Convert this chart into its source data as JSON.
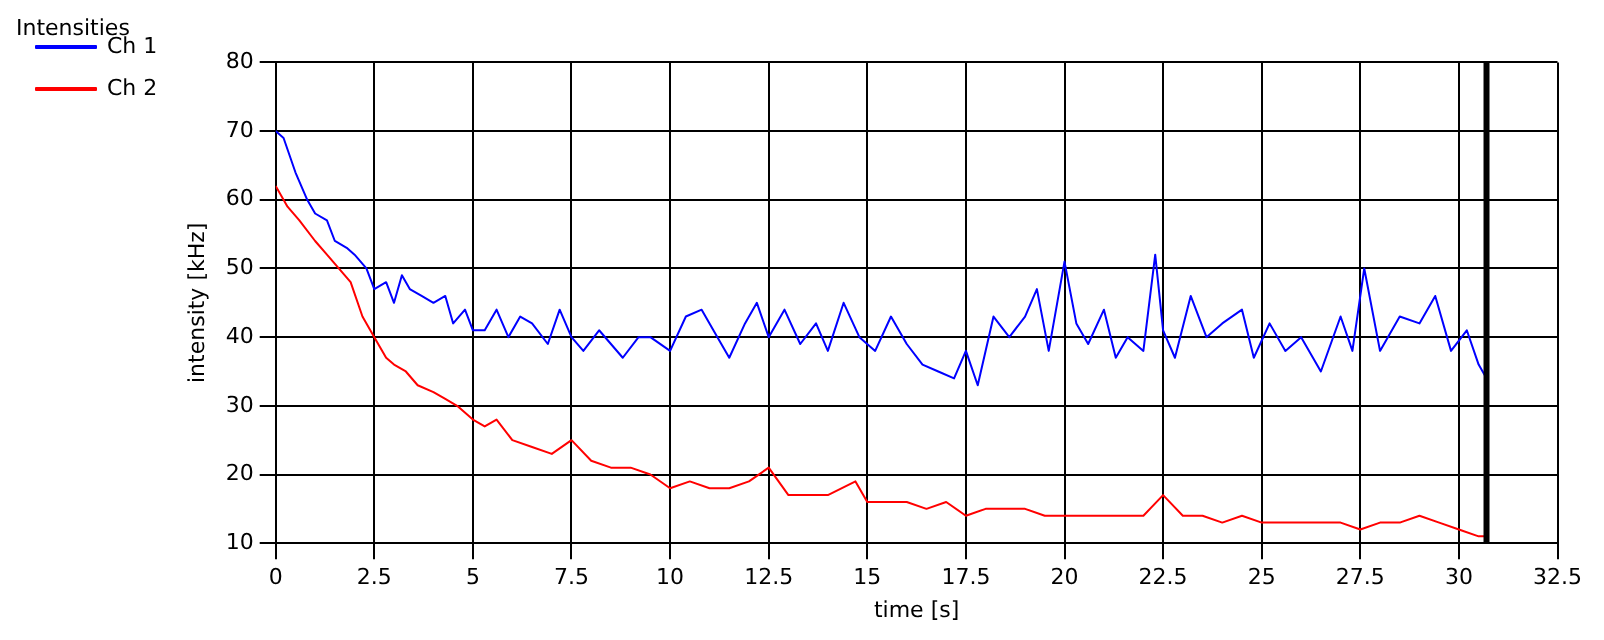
{
  "chart_data": {
    "type": "line",
    "title": "Intensities",
    "xlabel": "time [s]",
    "ylabel": "intensity [kHz]",
    "xlim": [
      0,
      32.5
    ],
    "xticks": [
      0,
      2.5,
      5,
      7.5,
      10,
      12.5,
      15,
      17.5,
      20,
      22.5,
      25,
      27.5,
      30,
      32.5
    ],
    "ylim": [
      10,
      80
    ],
    "yticks": [
      10,
      20,
      30,
      40,
      50,
      60,
      70,
      80
    ],
    "grid": true,
    "legend": "top left",
    "marker": "none",
    "line_style": "solid",
    "ref_lines": [
      {
        "axis": "x",
        "value": 30.7,
        "color": "#000000"
      }
    ],
    "series": [
      {
        "name": "Ch 1",
        "color": "#0000ff",
        "x": [
          0,
          0.2,
          0.5,
          0.8,
          1,
          1.3,
          1.5,
          1.8,
          2,
          2.3,
          2.5,
          2.8,
          3,
          3.2,
          3.4,
          3.7,
          4,
          4.3,
          4.5,
          4.8,
          5,
          5.3,
          5.6,
          5.9,
          6.2,
          6.5,
          6.9,
          7.2,
          7.5,
          7.8,
          8.2,
          8.5,
          8.8,
          9.2,
          9.5,
          10,
          10.4,
          10.8,
          11.2,
          11.5,
          11.9,
          12.2,
          12.5,
          12.9,
          13.3,
          13.7,
          14,
          14.4,
          14.8,
          15.2,
          15.6,
          16,
          16.4,
          16.8,
          17.2,
          17.5,
          17.8,
          18.2,
          18.6,
          19,
          19.3,
          19.6,
          20,
          20.3,
          20.6,
          21,
          21.3,
          21.6,
          22,
          22.3,
          22.5,
          22.8,
          23.2,
          23.6,
          24,
          24.5,
          24.8,
          25.2,
          25.6,
          26,
          26.5,
          27,
          27.3,
          27.6,
          28,
          28.5,
          29,
          29.4,
          29.8,
          30.2,
          30.5,
          30.7
        ],
        "values": [
          70,
          69,
          64,
          60,
          58,
          57,
          54,
          53,
          52,
          50,
          47,
          48,
          45,
          49,
          47,
          46,
          45,
          46,
          42,
          44,
          41,
          41,
          44,
          40,
          43,
          42,
          39,
          44,
          40,
          38,
          41,
          39,
          37,
          40,
          40,
          38,
          43,
          44,
          40,
          37,
          42,
          45,
          40,
          44,
          39,
          42,
          38,
          45,
          40,
          38,
          43,
          39,
          36,
          35,
          34,
          38,
          33,
          43,
          40,
          43,
          47,
          38,
          51,
          42,
          39,
          44,
          37,
          40,
          38,
          52,
          41,
          37,
          46,
          40,
          42,
          44,
          37,
          42,
          38,
          40,
          35,
          43,
          38,
          50,
          38,
          43,
          42,
          46,
          38,
          41,
          36,
          34
        ]
      },
      {
        "name": "Ch 2",
        "color": "#ff0000",
        "x": [
          0,
          0.3,
          0.6,
          1,
          1.3,
          1.6,
          1.9,
          2.2,
          2.5,
          2.8,
          3,
          3.3,
          3.6,
          4,
          4.3,
          4.6,
          5,
          5.3,
          5.6,
          6,
          6.5,
          7,
          7.5,
          8,
          8.5,
          9,
          9.5,
          10,
          10.5,
          11,
          11.5,
          12,
          12.5,
          13,
          13.5,
          14,
          14.7,
          15,
          15.5,
          16,
          16.5,
          17,
          17.5,
          18,
          18.5,
          19,
          19.5,
          20,
          20.5,
          21,
          21.5,
          22,
          22.5,
          23,
          23.5,
          24,
          24.5,
          25,
          25.5,
          26,
          26.5,
          27,
          27.5,
          28,
          28.5,
          29,
          29.5,
          30,
          30.5,
          30.7
        ],
        "values": [
          62,
          59,
          57,
          54,
          52,
          50,
          48,
          43,
          40,
          37,
          36,
          35,
          33,
          32,
          31,
          30,
          28,
          27,
          28,
          25,
          24,
          23,
          25,
          22,
          21,
          21,
          20,
          18,
          19,
          18,
          18,
          19,
          21,
          17,
          17,
          17,
          19,
          16,
          16,
          16,
          15,
          16,
          14,
          15,
          15,
          15,
          14,
          14,
          14,
          14,
          14,
          14,
          17,
          14,
          14,
          13,
          14,
          13,
          13,
          13,
          13,
          13,
          12,
          13,
          13,
          14,
          13,
          12,
          11,
          11
        ]
      }
    ]
  }
}
